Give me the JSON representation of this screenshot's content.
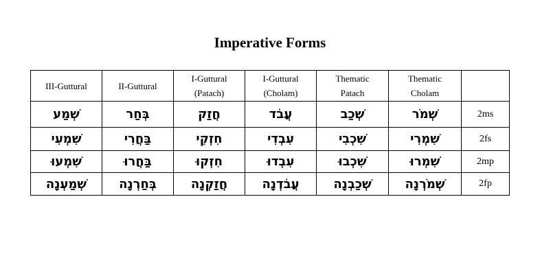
{
  "title": "Imperative Forms",
  "headers": [
    "III-Guttural",
    "II-Guttural",
    "I-Guttural\n(Patach)",
    "I-Guttural\n(Cholam)",
    "Thematic\nPatach",
    "Thematic\nCholam",
    ""
  ],
  "headers_lines": [
    [
      "III-Guttural"
    ],
    [
      "II-Guttural"
    ],
    [
      "I-Guttural",
      "(Patach)"
    ],
    [
      "I-Guttural",
      "(Cholam)"
    ],
    [
      "Thematic",
      "Patach"
    ],
    [
      "Thematic",
      "Cholam"
    ]
  ],
  "rows": [
    {
      "cells": [
        "שְׁמַע",
        "בְּחַר",
        "חֲזַק",
        "עֲבֹד",
        "שְׁכַב",
        "שְׁמֹר"
      ],
      "label": "2ms"
    },
    {
      "cells": [
        "שִׁמְעִי",
        "בַּחֲרִי",
        "חִזְקִי",
        "עִבְדִי",
        "שִׁכְבִי",
        "שִׁמְרִי"
      ],
      "label": "2fs"
    },
    {
      "cells": [
        "שִׁמְעוּ",
        "בַּחֲרוּ",
        "חִזְקוּ",
        "עִבְדוּ",
        "שִׁכְבוּ",
        "שִׁמְרוּ"
      ],
      "label": "2mp"
    },
    {
      "cells": [
        "שְׁמַעְנָה",
        "בְּחַרְנָה",
        "חֲזַקְנָה",
        "עֲבֹדְנָה",
        "שְׁכַבְנָה",
        "שְׁמֹרְנָה"
      ],
      "label": "2fp"
    }
  ]
}
